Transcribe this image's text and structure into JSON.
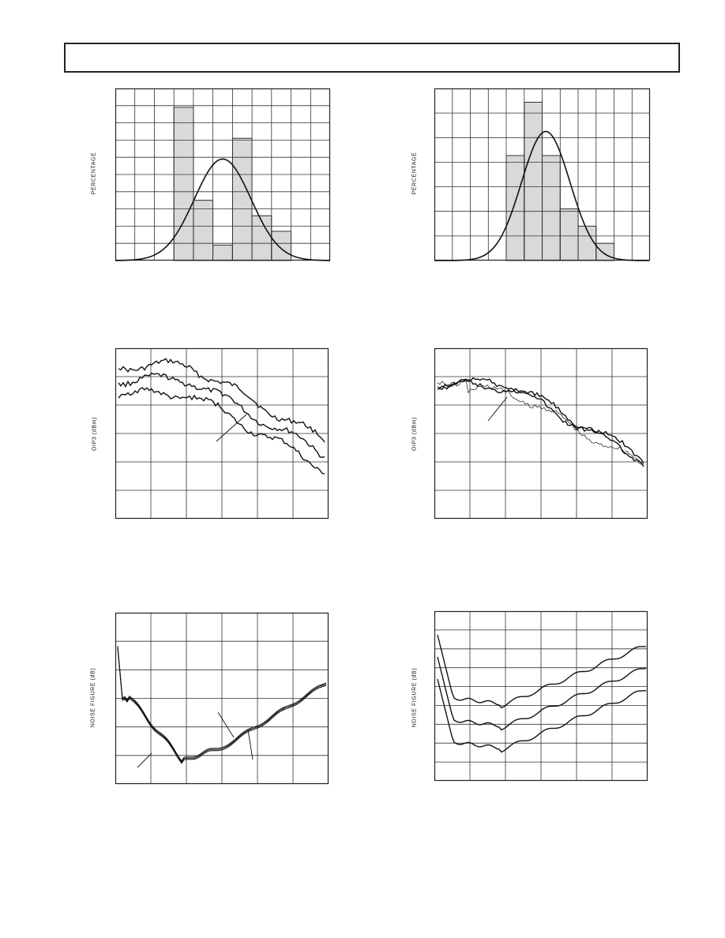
{
  "page": {
    "header_text": ""
  },
  "figures": [
    {
      "ylabel": "PERCENTAGE",
      "kind": "histogram",
      "grid_cols": 11,
      "grid_rows": 10,
      "bins": [
        {
          "col": 3,
          "level": 0.89
        },
        {
          "col": 4,
          "level": 0.35
        },
        {
          "col": 5,
          "level": 0.09
        },
        {
          "col": 6,
          "level": 0.71
        },
        {
          "col": 7,
          "level": 0.26
        },
        {
          "col": 8,
          "level": 0.17
        }
      ],
      "curve": {
        "mean_col": 5.5,
        "sigma_col": 1.45,
        "peak": 0.59
      }
    },
    {
      "ylabel": "PERCENTAGE",
      "kind": "histogram",
      "grid_cols": 12,
      "grid_rows": 7,
      "bins": [
        {
          "col": 4,
          "level": 0.61
        },
        {
          "col": 5,
          "level": 0.92
        },
        {
          "col": 6,
          "level": 0.61
        },
        {
          "col": 7,
          "level": 0.3
        },
        {
          "col": 8,
          "level": 0.2
        },
        {
          "col": 9,
          "level": 0.1
        }
      ],
      "curve": {
        "mean_col": 6.2,
        "sigma_col": 1.35,
        "peak": 0.75
      }
    },
    {
      "ylabel": "OIP3 (dBm)",
      "kind": "oip3",
      "grid_cols": 6,
      "grid_rows": 6
    },
    {
      "ylabel": "OIP3 (dBm)",
      "kind": "oip3b",
      "grid_cols": 6,
      "grid_rows": 6
    },
    {
      "ylabel": "NOISE FIGURE (dB)",
      "kind": "nf",
      "grid_cols": 6,
      "grid_rows": 6
    },
    {
      "ylabel": "NOISE FIGURE (dB)",
      "kind": "nfb",
      "grid_cols": 6,
      "grid_rows": 9
    }
  ]
}
